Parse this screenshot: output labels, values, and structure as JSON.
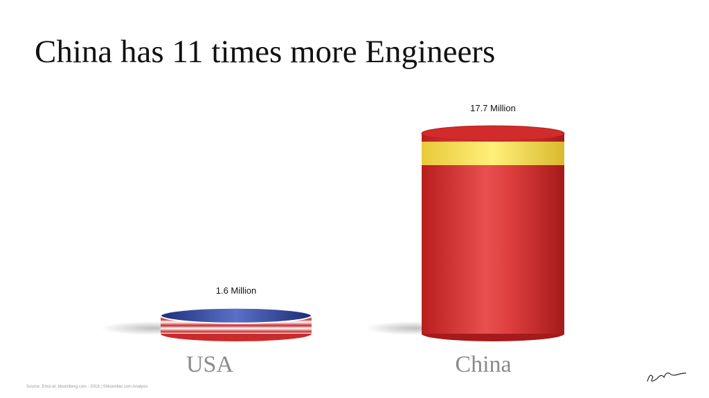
{
  "chart_data": {
    "type": "cylinder",
    "title": "China has 11 times more Engineers",
    "categories": [
      "USA",
      "China"
    ],
    "values": [
      1.6,
      17.7
    ],
    "value_labels": [
      "1.6 Million",
      "17.7 Million"
    ],
    "colors": [
      "#2b3f98",
      "#d22b2b"
    ],
    "source": "Source: Emsi et, bloomberg.com - 2019 | Shivamber.com Analysis"
  }
}
